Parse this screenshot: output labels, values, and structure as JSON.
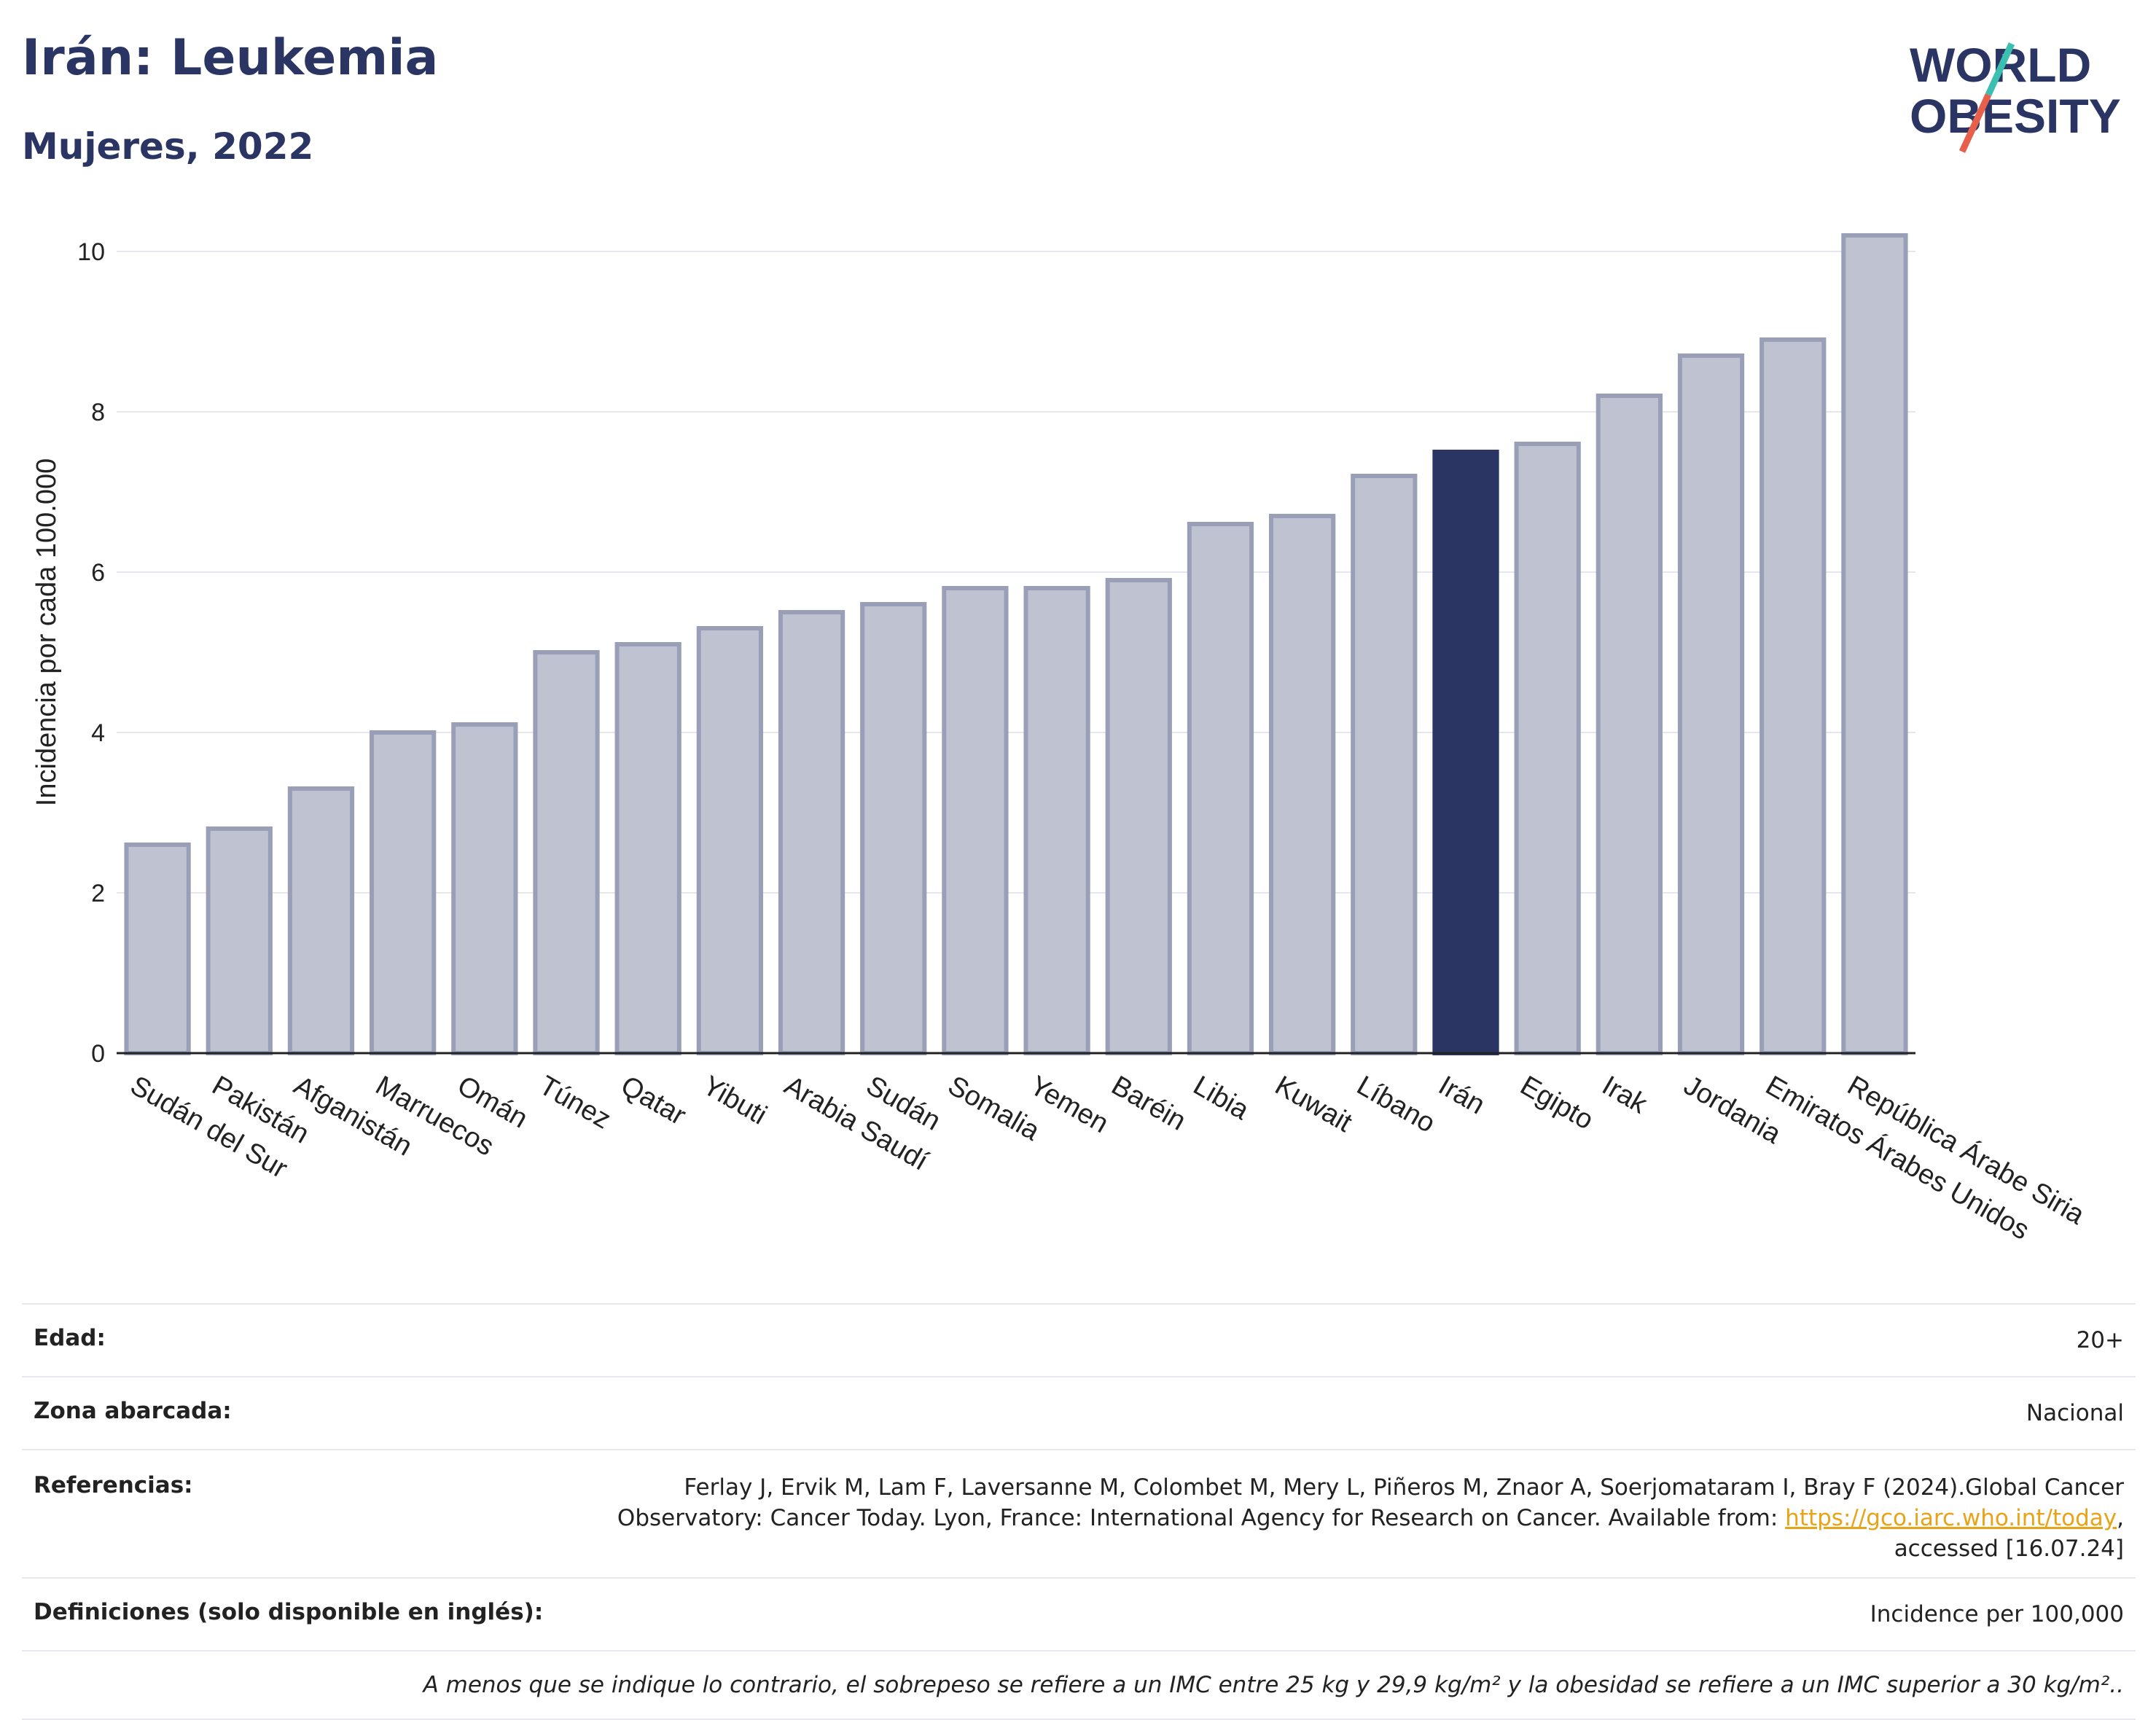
{
  "header": {
    "title": "Irán: Leukemia",
    "subtitle": "Mujeres, 2022"
  },
  "logo": {
    "line1": "WORLD",
    "line2": "OBESITY",
    "colors": {
      "text": "#2b3563",
      "slash_red": "#e8604c",
      "slash_teal": "#3bbfb0"
    }
  },
  "chart_data": {
    "type": "bar",
    "ylabel": "Incidencia por cada 100.000",
    "xlabel": "",
    "ylim": [
      0,
      10.5
    ],
    "yticks": [
      0,
      2,
      4,
      6,
      8,
      10
    ],
    "grid": true,
    "categories": [
      "Sudán del Sur",
      "Pakistán",
      "Afganistán",
      "Marruecos",
      "Omán",
      "Túnez",
      "Qatar",
      "Yibuti",
      "Arabia Saudí",
      "Sudán",
      "Somalia",
      "Yemen",
      "Baréin",
      "Libia",
      "Kuwait",
      "Líbano",
      "Irán",
      "Egipto",
      "Irak",
      "Jordania",
      "Emiratos Árabes Unidos",
      "República Árabe Siria"
    ],
    "values": [
      2.6,
      2.8,
      3.3,
      4.0,
      4.1,
      5.0,
      5.1,
      5.3,
      5.5,
      5.6,
      5.8,
      5.8,
      5.9,
      6.6,
      6.7,
      7.2,
      7.5,
      7.6,
      8.2,
      8.7,
      8.9,
      10.2
    ],
    "highlight": "Irán",
    "colors": {
      "bar": "#bfc2d0",
      "bar_border": "#9a9fb8",
      "highlight": "#2b3563",
      "grid": "#e6e7ee",
      "axis": "#222222"
    }
  },
  "info": {
    "rows": [
      {
        "label": "Edad:",
        "value": "20+"
      },
      {
        "label": "Zona abarcada:",
        "value": "Nacional"
      },
      {
        "label": "Definiciones (solo disponible en inglés):",
        "value": "Incidence per 100,000"
      }
    ],
    "references": {
      "label": "Referencias:",
      "line1": "Ferlay J, Ervik M, Lam F, Laversanne M, Colombet M, Mery L, Piñeros M, Znaor A, Soerjomataram I, Bray F (2024).Global Cancer",
      "line2_pre": "Observatory: Cancer Today. Lyon, France: International Agency for Research on Cancer. Available from: ",
      "link": "https://gco.iarc.who.int/today",
      "line2_post": ",",
      "line3": "accessed [16.07.24]"
    },
    "note": "A menos que se indique lo contrario, el sobrepeso se refiere a un IMC entre 25 kg y 29,9 kg/m² y la obesidad se refiere a un IMC superior a 30 kg/m².."
  }
}
